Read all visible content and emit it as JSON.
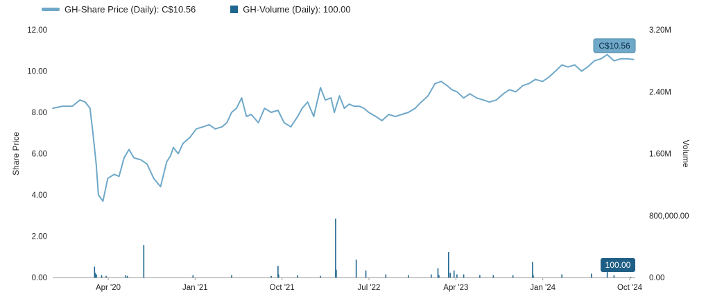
{
  "legend": {
    "price_label": "GH-Share Price (Daily): C$10.56",
    "volume_label": "GH-Volume (Daily): 100.00"
  },
  "colors": {
    "price": "#6FA8C8",
    "volume": "#1F6690",
    "price_callout_bg": "#6FA8C8",
    "volume_callout_bg": "#1F5F86"
  },
  "chart_data": {
    "type": "line",
    "title": "",
    "xlabel": "",
    "ylabel": "Share Price",
    "y2label": "Volume",
    "ylim": [
      0,
      12
    ],
    "y2lim": [
      0,
      3200000
    ],
    "y_ticks": [
      "12.00",
      "10.00",
      "8.00",
      "6.00",
      "4.00",
      "2.00",
      "0.00"
    ],
    "y2_ticks": [
      "3.20M",
      "2.40M",
      "1.60M",
      "800,000.00",
      "0.00"
    ],
    "x_ticks": [
      "Apr '20",
      "Jan '21",
      "Oct '21",
      "Jul '22",
      "Apr '23",
      "Jan '24",
      "Oct '24"
    ],
    "x_range": [
      "2019-11-01",
      "2024-10-15"
    ],
    "grid": false,
    "legend_position": "top-left",
    "series": [
      {
        "name": "GH-Share Price (Daily)",
        "kind": "line",
        "axis": "left",
        "x": [
          "2019-11-01",
          "2019-12-01",
          "2020-01-01",
          "2020-01-25",
          "2020-02-10",
          "2020-02-25",
          "2020-03-05",
          "2020-03-15",
          "2020-03-22",
          "2020-04-05",
          "2020-04-20",
          "2020-05-10",
          "2020-05-25",
          "2020-06-10",
          "2020-06-25",
          "2020-07-10",
          "2020-08-01",
          "2020-08-20",
          "2020-09-10",
          "2020-10-01",
          "2020-10-20",
          "2020-11-01",
          "2020-11-10",
          "2020-11-25",
          "2020-12-10",
          "2021-01-01",
          "2021-01-20",
          "2021-02-10",
          "2021-03-01",
          "2021-03-20",
          "2021-04-10",
          "2021-04-25",
          "2021-05-10",
          "2021-05-25",
          "2021-06-10",
          "2021-06-25",
          "2021-07-10",
          "2021-08-01",
          "2021-08-20",
          "2021-09-10",
          "2021-10-01",
          "2021-10-20",
          "2021-11-10",
          "2021-12-01",
          "2021-12-15",
          "2022-01-01",
          "2022-01-20",
          "2022-02-10",
          "2022-02-25",
          "2022-03-15",
          "2022-03-25",
          "2022-04-10",
          "2022-04-25",
          "2022-05-10",
          "2022-05-25",
          "2022-06-10",
          "2022-06-25",
          "2022-07-10",
          "2022-08-01",
          "2022-08-20",
          "2022-09-10",
          "2022-10-01",
          "2022-10-20",
          "2022-11-10",
          "2022-12-01",
          "2022-12-20",
          "2023-01-10",
          "2023-02-01",
          "2023-02-20",
          "2023-03-10",
          "2023-03-25",
          "2023-04-10",
          "2023-05-01",
          "2023-05-20",
          "2023-06-10",
          "2023-07-01",
          "2023-07-20",
          "2023-08-10",
          "2023-09-01",
          "2023-09-20",
          "2023-10-10",
          "2023-11-01",
          "2023-11-20",
          "2023-12-10",
          "2024-01-01",
          "2024-01-20",
          "2024-02-10",
          "2024-03-01",
          "2024-03-20",
          "2024-04-10",
          "2024-05-01",
          "2024-05-20",
          "2024-06-10",
          "2024-07-01",
          "2024-07-20",
          "2024-08-10",
          "2024-09-01",
          "2024-09-20",
          "2024-10-10"
        ],
        "values": [
          8.2,
          8.3,
          8.3,
          8.6,
          8.5,
          8.2,
          7.0,
          5.5,
          4.0,
          3.7,
          4.8,
          5.0,
          4.9,
          5.8,
          6.2,
          5.8,
          5.7,
          5.5,
          4.8,
          4.4,
          5.6,
          5.9,
          6.3,
          6.0,
          6.5,
          6.8,
          7.2,
          7.3,
          7.4,
          7.2,
          7.3,
          7.5,
          8.0,
          8.2,
          8.7,
          7.8,
          7.9,
          7.5,
          8.2,
          8.0,
          8.1,
          7.5,
          7.3,
          7.8,
          8.2,
          8.5,
          7.8,
          9.2,
          8.6,
          8.7,
          8.0,
          8.8,
          8.2,
          8.4,
          8.3,
          8.3,
          8.2,
          8.0,
          7.8,
          7.6,
          7.9,
          7.8,
          7.9,
          8.0,
          8.2,
          8.5,
          8.8,
          9.4,
          9.5,
          9.3,
          9.1,
          9.0,
          8.7,
          8.9,
          8.7,
          8.6,
          8.5,
          8.6,
          8.9,
          9.1,
          9.0,
          9.3,
          9.4,
          9.6,
          9.5,
          9.7,
          10.0,
          10.3,
          10.2,
          10.3,
          10.0,
          10.2,
          10.5,
          10.6,
          10.8,
          10.5,
          10.6,
          10.6,
          10.56
        ]
      },
      {
        "name": "GH-Volume (Daily)",
        "kind": "bar",
        "axis": "right",
        "x": [
          "2020-03-10",
          "2020-03-12",
          "2020-03-16",
          "2020-04-01",
          "2020-04-15",
          "2020-06-15",
          "2020-06-20",
          "2020-08-10",
          "2021-01-10",
          "2021-05-10",
          "2021-09-10",
          "2021-10-01",
          "2021-10-03",
          "2021-12-01",
          "2022-02-10",
          "2022-03-29",
          "2022-03-31",
          "2022-06-01",
          "2022-07-01",
          "2022-09-01",
          "2022-11-10",
          "2023-01-20",
          "2023-02-10",
          "2023-02-13",
          "2023-03-15",
          "2023-03-20",
          "2023-04-01",
          "2023-04-10",
          "2023-05-01",
          "2023-06-20",
          "2023-08-01",
          "2023-10-01",
          "2023-12-01",
          "2023-12-03",
          "2024-03-01",
          "2024-06-01",
          "2024-07-20",
          "2024-08-10",
          "2024-10-01"
        ],
        "values": [
          140000,
          60000,
          40000,
          30000,
          20000,
          30000,
          20000,
          420000,
          30000,
          30000,
          20000,
          150000,
          40000,
          30000,
          20000,
          760000,
          100000,
          230000,
          90000,
          40000,
          30000,
          40000,
          120000,
          30000,
          330000,
          60000,
          90000,
          40000,
          40000,
          30000,
          30000,
          30000,
          200000,
          30000,
          40000,
          50000,
          130000,
          30000,
          100
        ]
      }
    ],
    "annotations": [
      {
        "label": "C$10.56",
        "series": "GH-Share Price (Daily)"
      },
      {
        "label": "100.00",
        "series": "GH-Volume (Daily)"
      }
    ]
  }
}
